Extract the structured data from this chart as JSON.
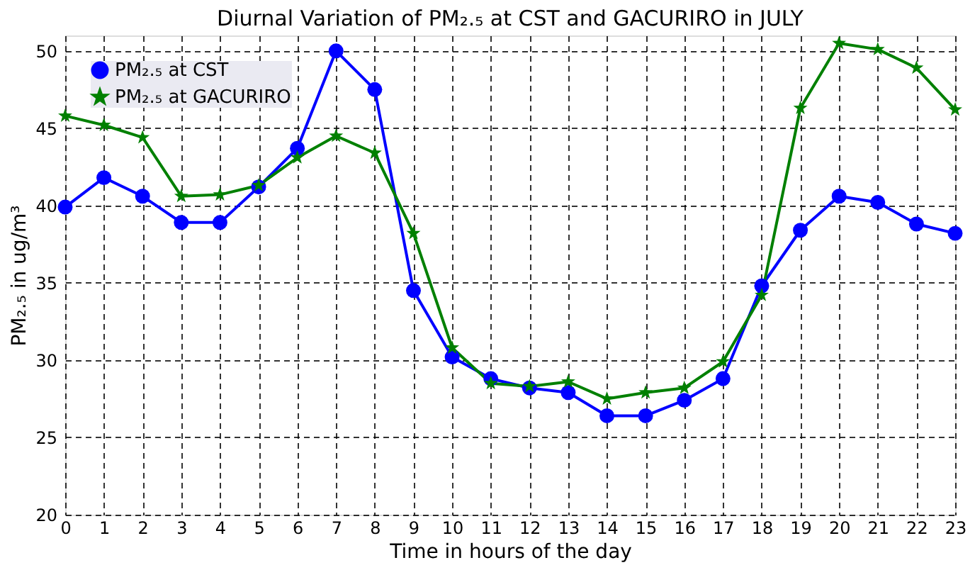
{
  "chart_data": {
    "type": "line",
    "title": "Diurnal Variation of PM₂.₅ at CST and GACURIRO in JULY",
    "xlabel": "Time in hours of the day",
    "ylabel": "PM₂.₅ in ug/m³",
    "x": [
      0,
      1,
      2,
      3,
      4,
      5,
      6,
      7,
      8,
      9,
      10,
      11,
      12,
      13,
      14,
      15,
      16,
      17,
      18,
      19,
      20,
      21,
      22,
      23
    ],
    "series": [
      {
        "name": "PM₂.₅ at CST",
        "color": "#0000ff",
        "marker": "circle",
        "values": [
          39.9,
          41.8,
          40.6,
          38.9,
          38.9,
          41.2,
          43.7,
          50.0,
          47.5,
          34.5,
          30.2,
          28.8,
          28.2,
          27.9,
          26.4,
          26.4,
          27.4,
          28.8,
          34.8,
          38.4,
          40.6,
          40.2,
          38.8,
          38.2
        ]
      },
      {
        "name": "PM₂.₅ at GACURIRO",
        "color": "#008000",
        "marker": "star",
        "values": [
          45.8,
          45.2,
          44.4,
          40.6,
          40.7,
          41.3,
          43.1,
          44.5,
          43.4,
          38.2,
          30.8,
          28.5,
          28.3,
          28.6,
          27.5,
          27.9,
          28.2,
          29.9,
          34.2,
          46.3,
          50.5,
          50.1,
          48.9,
          46.2
        ]
      }
    ],
    "xlim": [
      0,
      23
    ],
    "xticks": [
      0,
      1,
      2,
      3,
      4,
      5,
      6,
      7,
      8,
      9,
      10,
      11,
      12,
      13,
      14,
      15,
      16,
      17,
      18,
      19,
      20,
      21,
      22,
      23
    ],
    "ylim": [
      20,
      51
    ],
    "yticks": [
      20,
      25,
      30,
      35,
      40,
      45,
      50
    ],
    "grid": true,
    "legend": "top left",
    "line_style": "solid"
  }
}
